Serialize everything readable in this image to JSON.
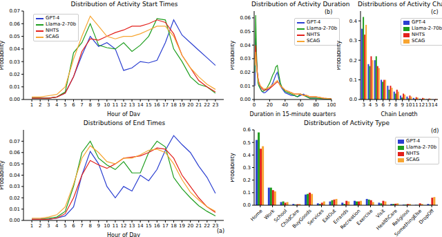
{
  "chart_data": [
    {
      "type": "line",
      "title": "Distribution of Activity Start Times",
      "x_label": "Hour of Day",
      "y_label": "Probability",
      "x": [
        1,
        2,
        3,
        4,
        5,
        6,
        7,
        8,
        9,
        10,
        11,
        12,
        13,
        14,
        15,
        16,
        17,
        18,
        19,
        20,
        21,
        22,
        23
      ],
      "xlim": [
        0,
        24
      ],
      "xticks": [
        1,
        2,
        3,
        4,
        5,
        6,
        7,
        8,
        9,
        10,
        11,
        12,
        13,
        14,
        15,
        16,
        17,
        18,
        19,
        20,
        21,
        22,
        23
      ],
      "ylim": [
        0,
        0.07
      ],
      "yticks": [
        {
          "value": 0,
          "label": "0.00"
        },
        0.01,
        0.02,
        0.03,
        0.04,
        0.05,
        0.06,
        0.07
      ],
      "legend": "upper left",
      "series": [
        {
          "name": "GPT-4",
          "color": "#2b3fd1",
          "values": [
            0.001,
            0.001,
            0.001,
            0.002,
            0.005,
            0.018,
            0.035,
            0.05,
            0.042,
            0.045,
            0.04,
            0.023,
            0.025,
            0.03,
            0.029,
            0.031,
            0.045,
            0.063,
            0.051,
            0.045,
            0.039,
            0.033,
            0.027
          ]
        },
        {
          "name": "Llama-2-70b",
          "color": "#1e9e1e",
          "values": [
            0.001,
            0.001,
            0.001,
            0.002,
            0.006,
            0.037,
            0.045,
            0.06,
            0.043,
            0.041,
            0.04,
            0.045,
            0.038,
            0.043,
            0.05,
            0.064,
            0.063,
            0.04,
            0.03,
            0.018,
            0.012,
            0.01,
            0.005
          ]
        },
        {
          "name": "NHTS",
          "color": "#e3201b",
          "values": [
            0.001,
            0.001,
            0.001,
            0.002,
            0.005,
            0.018,
            0.038,
            0.048,
            0.047,
            0.05,
            0.053,
            0.055,
            0.058,
            0.058,
            0.06,
            0.063,
            0.061,
            0.052,
            0.035,
            0.025,
            0.015,
            0.01,
            0.006
          ]
        },
        {
          "name": "SCAG",
          "color": "#f7a531",
          "values": [
            0.002,
            0.002,
            0.003,
            0.004,
            0.01,
            0.032,
            0.05,
            0.066,
            0.058,
            0.05,
            0.048,
            0.05,
            0.05,
            0.052,
            0.055,
            0.058,
            0.058,
            0.05,
            0.035,
            0.025,
            0.018,
            0.012,
            0.008
          ]
        }
      ]
    },
    {
      "type": "line",
      "title": "Distributions of End Times",
      "x_label": "Hour of Day",
      "y_label": "Probability",
      "annotations": [
        "(a)"
      ],
      "x": [
        1,
        2,
        3,
        4,
        5,
        6,
        7,
        8,
        9,
        10,
        11,
        12,
        13,
        14,
        15,
        16,
        17,
        18,
        19,
        20,
        21,
        22,
        23
      ],
      "xlim": [
        0,
        24
      ],
      "xticks": [
        1,
        2,
        3,
        4,
        5,
        6,
        7,
        8,
        9,
        10,
        11,
        12,
        13,
        14,
        15,
        16,
        17,
        18,
        19,
        20,
        21,
        22,
        23
      ],
      "ylim": [
        0,
        0.08
      ],
      "yticks": [
        {
          "value": 0,
          "label": "0.00"
        },
        0.01,
        0.02,
        0.03,
        0.04,
        0.05,
        0.06,
        0.07
      ],
      "series": [
        {
          "name": "GPT-4",
          "color": "#2b3fd1",
          "values": [
            0.001,
            0.001,
            0.001,
            0.002,
            0.004,
            0.012,
            0.04,
            0.061,
            0.05,
            0.03,
            0.02,
            0.03,
            0.026,
            0.04,
            0.035,
            0.045,
            0.062,
            0.075,
            0.067,
            0.06,
            0.048,
            0.038,
            0.024
          ]
        },
        {
          "name": "Llama-2-70b",
          "color": "#1e9e1e",
          "values": [
            0.001,
            0.001,
            0.002,
            0.003,
            0.008,
            0.03,
            0.06,
            0.07,
            0.055,
            0.049,
            0.045,
            0.052,
            0.042,
            0.042,
            0.06,
            0.07,
            0.065,
            0.038,
            0.028,
            0.02,
            0.013,
            0.008,
            0.004
          ]
        },
        {
          "name": "NHTS",
          "color": "#e3201b",
          "values": [
            0.001,
            0.001,
            0.001,
            0.002,
            0.006,
            0.02,
            0.04,
            0.053,
            0.049,
            0.046,
            0.05,
            0.055,
            0.056,
            0.057,
            0.06,
            0.064,
            0.063,
            0.055,
            0.04,
            0.03,
            0.02,
            0.012,
            0.007
          ]
        },
        {
          "name": "SCAG",
          "color": "#f7a531",
          "values": [
            0.002,
            0.002,
            0.003,
            0.005,
            0.012,
            0.032,
            0.055,
            0.066,
            0.06,
            0.052,
            0.05,
            0.055,
            0.055,
            0.058,
            0.062,
            0.063,
            0.06,
            0.05,
            0.036,
            0.025,
            0.018,
            0.012,
            0.008
          ]
        }
      ]
    },
    {
      "type": "line",
      "title": "Distribution of Activity Duration",
      "x_label": "Duration in 15-minute quarters",
      "y_label": "Probability",
      "annotations": [
        "(b)"
      ],
      "x": [
        1,
        2,
        3,
        4,
        5,
        6,
        8,
        10,
        12,
        14,
        16,
        18,
        20,
        22,
        24,
        26,
        28,
        30,
        32,
        34,
        36,
        40,
        44,
        48,
        52,
        56,
        60,
        64,
        68,
        72,
        80,
        90,
        100
      ],
      "xlim": [
        0,
        100
      ],
      "xticks": [
        0,
        20,
        40,
        60,
        80,
        100
      ],
      "ylim": [
        0,
        0.065
      ],
      "yticks": [
        {
          "value": 0,
          "label": "0.00"
        },
        0.01,
        0.02,
        0.03,
        0.04,
        0.05,
        0.06
      ],
      "legend": "upper right",
      "series": [
        {
          "name": "GPT-4",
          "color": "#2b3fd1",
          "values": [
            0.01,
            0.045,
            0.03,
            0.02,
            0.015,
            0.012,
            0.008,
            0.006,
            0.005,
            0.005,
            0.006,
            0.007,
            0.008,
            0.01,
            0.012,
            0.015,
            0.018,
            0.02,
            0.015,
            0.01,
            0.008,
            0.005,
            0.004,
            0.003,
            0.003,
            0.002,
            0.003,
            0.004,
            0.002,
            0.001,
            0.001,
            0.0005,
            0.0003
          ]
        },
        {
          "name": "Llama-2-70b",
          "color": "#1e9e1e",
          "values": [
            0.02,
            0.062,
            0.035,
            0.02,
            0.012,
            0.01,
            0.008,
            0.006,
            0.006,
            0.007,
            0.008,
            0.01,
            0.012,
            0.015,
            0.018,
            0.02,
            0.024,
            0.025,
            0.018,
            0.012,
            0.009,
            0.006,
            0.005,
            0.004,
            0.003,
            0.002,
            0.004,
            0.003,
            0.002,
            0.001,
            0.001,
            0.0005,
            0.0003
          ]
        },
        {
          "name": "NHTS",
          "color": "#e3201b",
          "values": [
            0.03,
            0.04,
            0.028,
            0.02,
            0.016,
            0.013,
            0.01,
            0.008,
            0.007,
            0.007,
            0.007,
            0.008,
            0.008,
            0.009,
            0.01,
            0.011,
            0.012,
            0.013,
            0.012,
            0.01,
            0.009,
            0.007,
            0.006,
            0.005,
            0.004,
            0.004,
            0.004,
            0.003,
            0.003,
            0.002,
            0.002,
            0.001,
            0.0005
          ]
        },
        {
          "name": "SCAG",
          "color": "#f7a531",
          "values": [
            0.025,
            0.035,
            0.025,
            0.018,
            0.015,
            0.012,
            0.01,
            0.009,
            0.008,
            0.008,
            0.008,
            0.009,
            0.009,
            0.01,
            0.011,
            0.012,
            0.013,
            0.014,
            0.012,
            0.01,
            0.009,
            0.007,
            0.006,
            0.005,
            0.004,
            0.004,
            0.004,
            0.003,
            0.003,
            0.002,
            0.002,
            0.001,
            0.0005
          ]
        }
      ]
    },
    {
      "type": "bar",
      "title": "Distributions of Activity Chain Length",
      "x_label": "Chain Length",
      "y_label": "Probability",
      "annotations": [
        "(c)"
      ],
      "categories": [
        3,
        4,
        5,
        6,
        7,
        8,
        9,
        10,
        11,
        12,
        13,
        14
      ],
      "ylim": [
        0,
        0.45
      ],
      "yticks": [
        {
          "value": 0,
          "label": "0.0"
        },
        0.1,
        0.2,
        0.3,
        0.4
      ],
      "legend": "upper right",
      "series": [
        {
          "name": "GPT-4",
          "color": "#2b3fd1",
          "values": [
            0.36,
            0.18,
            0.2,
            0.1,
            0.07,
            0.04,
            0.02,
            0.015,
            0.008,
            0.004,
            0.002,
            0.001
          ]
        },
        {
          "name": "Llama-2-70b",
          "color": "#1e9e1e",
          "values": [
            0.42,
            0.17,
            0.22,
            0.09,
            0.05,
            0.03,
            0.01,
            0.006,
            0.003,
            0.001,
            0.001,
            0
          ]
        },
        {
          "name": "NHTS",
          "color": "#e3201b",
          "values": [
            0.33,
            0.22,
            0.17,
            0.1,
            0.07,
            0.05,
            0.03,
            0.02,
            0.012,
            0.008,
            0.005,
            0.003
          ]
        },
        {
          "name": "SCAG",
          "color": "#f7a531",
          "values": [
            0.38,
            0.2,
            0.16,
            0.1,
            0.06,
            0.04,
            0.025,
            0.015,
            0.01,
            0.006,
            0.004,
            0.002
          ]
        }
      ]
    },
    {
      "type": "bar",
      "title": "Distribution of Activity Type",
      "y_label": "Probability",
      "annotations": [
        "(d)"
      ],
      "categories": [
        "Home",
        "Work",
        "School",
        "ChildCare",
        "BuyGoods",
        "Services",
        "EatOut",
        "Errands",
        "Recreation",
        "Exercise",
        "Visit",
        "HealthCare",
        "Religious",
        "SomethingElse",
        "DropOff"
      ],
      "ylim": [
        0,
        0.6
      ],
      "yticks": [
        {
          "value": 0,
          "label": "0.0"
        },
        0.1,
        0.2,
        0.3,
        0.4,
        0.5,
        0.6
      ],
      "legend": "upper right",
      "series": [
        {
          "name": "GPT-4",
          "color": "#2b3fd1",
          "values": [
            0.52,
            0.14,
            0.025,
            0.01,
            0.085,
            0.015,
            0.03,
            0.02,
            0.035,
            0.05,
            0.02,
            0.01,
            0.005,
            0.003,
            0.01
          ]
        },
        {
          "name": "Llama-2-70b",
          "color": "#1e9e1e",
          "values": [
            0.58,
            0.14,
            0.03,
            0.005,
            0.09,
            0.01,
            0.04,
            0.01,
            0.03,
            0.045,
            0.015,
            0.01,
            0.005,
            0.002,
            0.005
          ]
        },
        {
          "name": "NHTS",
          "color": "#e3201b",
          "values": [
            0.45,
            0.12,
            0.02,
            0.008,
            0.1,
            0.02,
            0.045,
            0.035,
            0.03,
            0.04,
            0.035,
            0.012,
            0.01,
            0.015,
            0.06
          ]
        },
        {
          "name": "SCAG",
          "color": "#f7a531",
          "values": [
            0.47,
            0.11,
            0.025,
            0.01,
            0.09,
            0.03,
            0.05,
            0.03,
            0.035,
            0.025,
            0.03,
            0.015,
            0.01,
            0.01,
            0.065
          ]
        }
      ]
    }
  ]
}
